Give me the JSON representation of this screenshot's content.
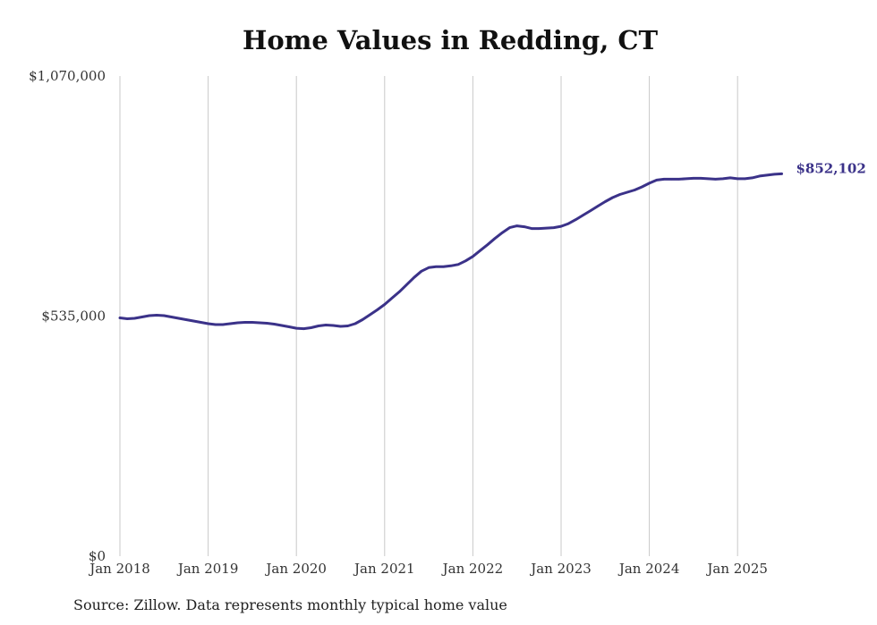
{
  "chart_data": {
    "type": "line",
    "title": "Home Values in Redding, CT",
    "xlabel": "",
    "ylabel": "",
    "x_ticks": [
      "Jan 2018",
      "Jan 2019",
      "Jan 2020",
      "Jan 2021",
      "Jan 2022",
      "Jan 2023",
      "Jan 2024",
      "Jan 2025"
    ],
    "y_ticks": [
      {
        "value": 0,
        "label": "$0"
      },
      {
        "value": 535000,
        "label": "$535,000"
      },
      {
        "value": 1070000,
        "label": "$1,070,000"
      }
    ],
    "ylim": [
      0,
      1070000
    ],
    "xlim": [
      "2018-01",
      "2025-07"
    ],
    "grid": "vertical",
    "line_color": "#3b3289",
    "end_label": "$852,102",
    "series": [
      {
        "x": [
          "2018-01",
          "2018-02",
          "2018-03",
          "2018-04",
          "2018-05",
          "2018-06",
          "2018-07",
          "2018-08",
          "2018-09",
          "2018-10",
          "2018-11",
          "2018-12",
          "2019-01",
          "2019-02",
          "2019-03",
          "2019-04",
          "2019-05",
          "2019-06",
          "2019-07",
          "2019-08",
          "2019-09",
          "2019-10",
          "2019-11",
          "2019-12",
          "2020-01",
          "2020-02",
          "2020-03",
          "2020-04",
          "2020-05",
          "2020-06",
          "2020-07",
          "2020-08",
          "2020-09",
          "2020-10",
          "2020-11",
          "2020-12",
          "2021-01",
          "2021-02",
          "2021-03",
          "2021-04",
          "2021-05",
          "2021-06",
          "2021-07",
          "2021-08",
          "2021-09",
          "2021-10",
          "2021-11",
          "2021-12",
          "2022-01",
          "2022-02",
          "2022-03",
          "2022-04",
          "2022-05",
          "2022-06",
          "2022-07",
          "2022-08",
          "2022-09",
          "2022-10",
          "2022-11",
          "2022-12",
          "2023-01",
          "2023-02",
          "2023-03",
          "2023-04",
          "2023-05",
          "2023-06",
          "2023-07",
          "2023-08",
          "2023-09",
          "2023-10",
          "2023-11",
          "2023-12",
          "2024-01",
          "2024-02",
          "2024-03",
          "2024-04",
          "2024-05",
          "2024-06",
          "2024-07",
          "2024-08",
          "2024-09",
          "2024-10",
          "2024-11",
          "2024-12",
          "2025-01",
          "2025-02",
          "2025-03",
          "2025-04",
          "2025-05",
          "2025-06",
          "2025-07"
        ],
        "values": [
          531000,
          529000,
          530000,
          533000,
          536000,
          537000,
          536000,
          533000,
          530000,
          527000,
          524000,
          521000,
          518000,
          516000,
          516000,
          518000,
          520000,
          521000,
          521000,
          520000,
          519000,
          517000,
          514000,
          511000,
          508000,
          507000,
          509000,
          513000,
          515000,
          514000,
          512000,
          513000,
          518000,
          527000,
          538000,
          549000,
          561000,
          575000,
          589000,
          605000,
          621000,
          635000,
          643000,
          645000,
          645000,
          647000,
          650000,
          658000,
          668000,
          681000,
          694000,
          708000,
          721000,
          732000,
          736000,
          734000,
          730000,
          730000,
          731000,
          732000,
          735000,
          741000,
          750000,
          760000,
          770000,
          780000,
          790000,
          799000,
          806000,
          811000,
          816000,
          823000,
          831000,
          838000,
          840000,
          840000,
          840000,
          841000,
          842000,
          842000,
          841000,
          840000,
          841000,
          843000,
          841000,
          841000,
          843000,
          847000,
          849000,
          851000,
          852102
        ]
      }
    ]
  },
  "source_note": "Source: Zillow. Data represents monthly typical home value"
}
